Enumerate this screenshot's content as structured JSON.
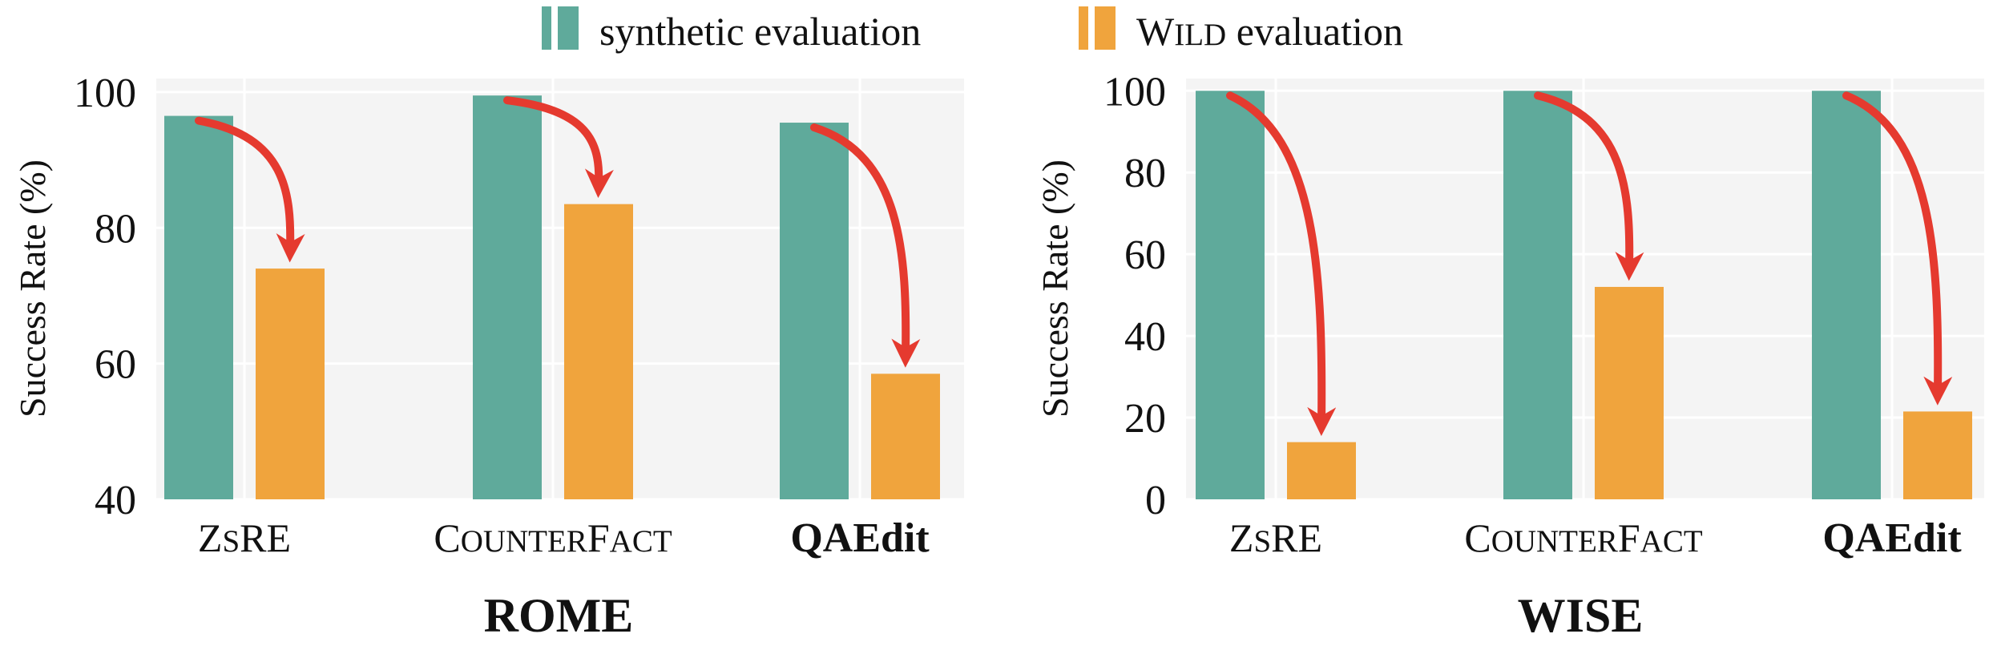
{
  "legend": {
    "series": [
      {
        "name": "synthetic evaluation",
        "color": "#5faa9b"
      },
      {
        "name": "WILD evaluation",
        "color": "#f0a43d"
      }
    ]
  },
  "arrow_color": "#e53a2f",
  "chart_data": [
    {
      "type": "bar",
      "title": "ROME",
      "categories": [
        "ZsRE",
        "CounterFact",
        "QAEdit"
      ],
      "xlabel": "",
      "ylabel": "Success Rate (%)",
      "ylim": [
        40,
        102
      ],
      "yticks": [
        40,
        60,
        80,
        100
      ],
      "grid": true,
      "series": [
        {
          "name": "synthetic evaluation",
          "values": [
            96.5,
            99.5,
            95.5
          ]
        },
        {
          "name": "WILD evaluation",
          "values": [
            74,
            83.5,
            58.5
          ]
        }
      ],
      "annotations": "red arrows from synthetic bar to WILD bar in each category"
    },
    {
      "type": "bar",
      "title": "WISE",
      "categories": [
        "ZsRE",
        "CounterFact",
        "QAEdit"
      ],
      "xlabel": "",
      "ylabel": "Success Rate (%)",
      "ylim": [
        0,
        103
      ],
      "yticks": [
        0,
        20,
        40,
        60,
        80,
        100
      ],
      "grid": true,
      "series": [
        {
          "name": "synthetic evaluation",
          "values": [
            100,
            100,
            100
          ]
        },
        {
          "name": "WILD evaluation",
          "values": [
            14,
            52,
            21.5
          ]
        }
      ],
      "annotations": "red arrows from synthetic bar to WILD bar in each category"
    }
  ]
}
